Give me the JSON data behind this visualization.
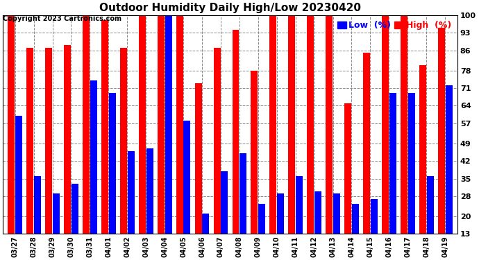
{
  "title": "Outdoor Humidity Daily High/Low 20230420",
  "copyright": "Copyright 2023 Cartronics.com",
  "legend_low": "Low  (%)",
  "legend_high": "High  (%)",
  "categories": [
    "03/27",
    "03/28",
    "03/29",
    "03/30",
    "03/31",
    "04/01",
    "04/02",
    "04/03",
    "04/04",
    "04/05",
    "04/06",
    "04/07",
    "04/08",
    "04/09",
    "04/10",
    "04/11",
    "04/12",
    "04/13",
    "04/14",
    "04/15",
    "04/16",
    "04/17",
    "04/18",
    "04/19"
  ],
  "high": [
    100,
    87,
    87,
    88,
    100,
    98,
    87,
    100,
    100,
    100,
    73,
    87,
    94,
    78,
    100,
    100,
    100,
    100,
    65,
    85,
    100,
    100,
    80,
    95
  ],
  "low": [
    60,
    36,
    29,
    33,
    74,
    69,
    46,
    47,
    100,
    58,
    21,
    38,
    45,
    25,
    29,
    36,
    30,
    29,
    25,
    27,
    69,
    69,
    36,
    72
  ],
  "ylim": [
    13,
    100
  ],
  "yticks": [
    13,
    20,
    28,
    35,
    42,
    49,
    57,
    64,
    71,
    78,
    86,
    93,
    100
  ],
  "bar_color_high": "#ff0000",
  "bar_color_low": "#0000ff",
  "background_color": "#ffffff",
  "grid_color": "#888888",
  "title_fontsize": 11,
  "copyright_fontsize": 7,
  "legend_fontsize": 9
}
